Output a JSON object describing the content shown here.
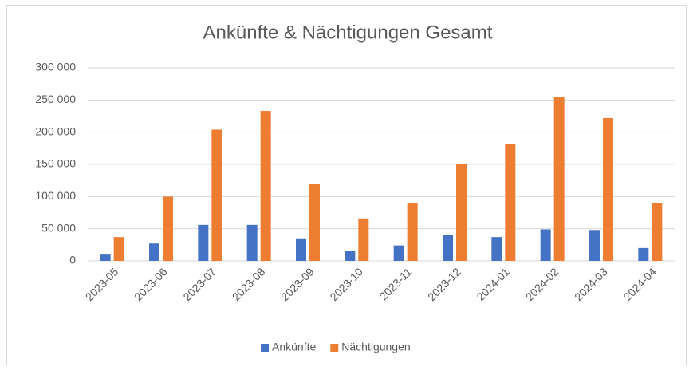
{
  "chart_data": {
    "type": "bar",
    "title": "Ankünfte & Nächtigungen Gesamt",
    "categories": [
      "2023-05",
      "2023-06",
      "2023-07",
      "2023-08",
      "2023-09",
      "2023-10",
      "2023-11",
      "2023-12",
      "2024-01",
      "2024-02",
      "2024-03",
      "2024-04"
    ],
    "series": [
      {
        "name": "Ankünfte",
        "color": "#4472c4",
        "values": [
          11000,
          27000,
          56000,
          56000,
          35000,
          16000,
          24000,
          40000,
          37000,
          49000,
          48000,
          20000
        ]
      },
      {
        "name": "Nächtigungen",
        "color": "#ed7d31",
        "values": [
          37000,
          100000,
          204000,
          233000,
          120000,
          66000,
          90000,
          151000,
          182000,
          255000,
          222000,
          90000
        ]
      }
    ],
    "ylim": [
      0,
      300000
    ],
    "yticks": [
      0,
      {
        "value": 50000,
        "label": "50 000"
      },
      {
        "value": 100000,
        "label": "100 000"
      },
      {
        "value": 150000,
        "label": "150 000"
      },
      {
        "value": 200000,
        "label": "200 000"
      },
      {
        "value": 250000,
        "label": "250 000"
      },
      {
        "value": 300000,
        "label": "300 000"
      }
    ],
    "grid": true,
    "legend": "bottom"
  }
}
